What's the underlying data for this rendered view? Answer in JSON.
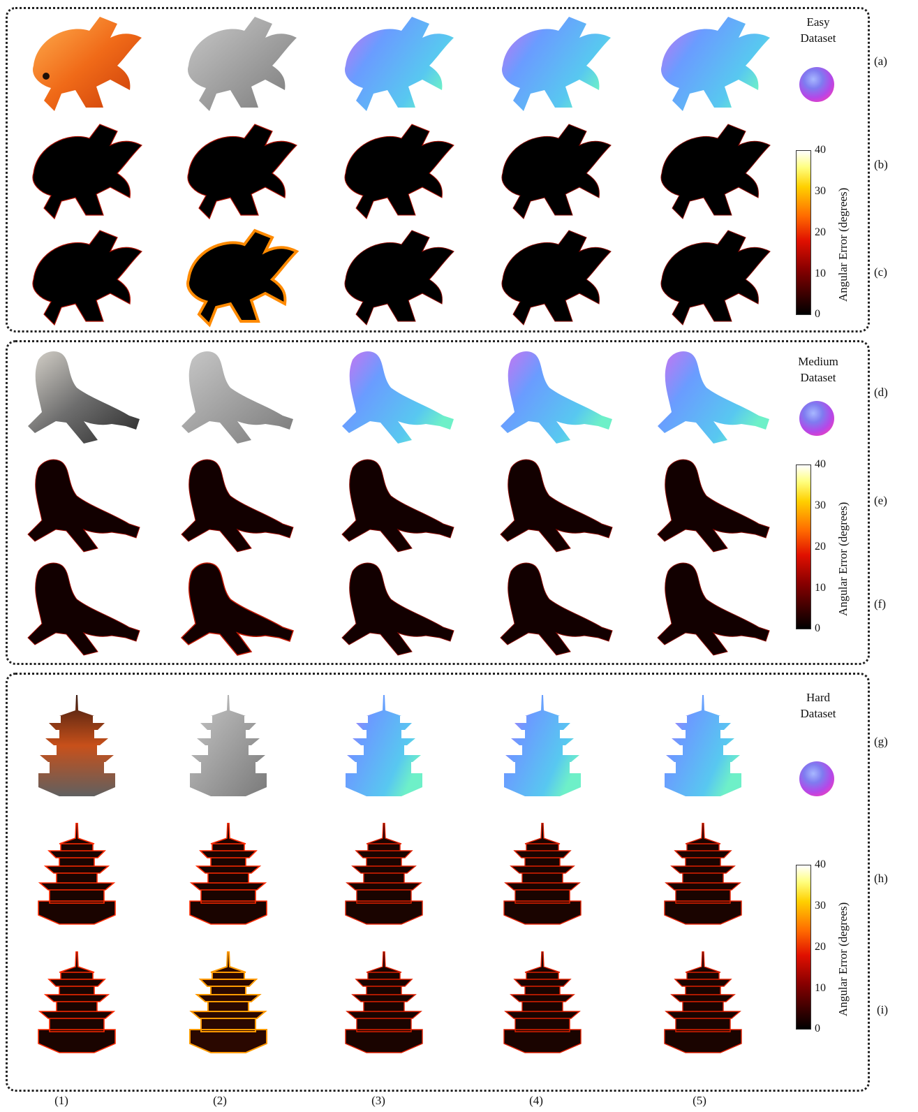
{
  "datasets": [
    {
      "title_line1": "Easy",
      "title_line2": "Dataset",
      "row_labels": [
        "(a)",
        "(b)",
        "(c)"
      ]
    },
    {
      "title_line1": "Medium",
      "title_line2": "Dataset",
      "row_labels": [
        "(d)",
        "(e)",
        "(f)"
      ]
    },
    {
      "title_line1": "Hard",
      "title_line2": "Dataset",
      "row_labels": [
        "(g)",
        "(h)",
        "(i)"
      ]
    }
  ],
  "colorbar": {
    "label": "Angular Error (degrees)",
    "ticks": [
      "40",
      "30",
      "20",
      "10",
      "0"
    ]
  },
  "column_labels": [
    "(1)",
    "(2)",
    "(3)",
    "(4)",
    "(5)"
  ],
  "colors": {
    "rgb_fish": "#f07020",
    "depth": "#9a9a9a",
    "normal": "#5aa8f0",
    "error_bg": "#000000",
    "error_edge": "#ff3000",
    "seal_rgb": "#4a4e52"
  }
}
